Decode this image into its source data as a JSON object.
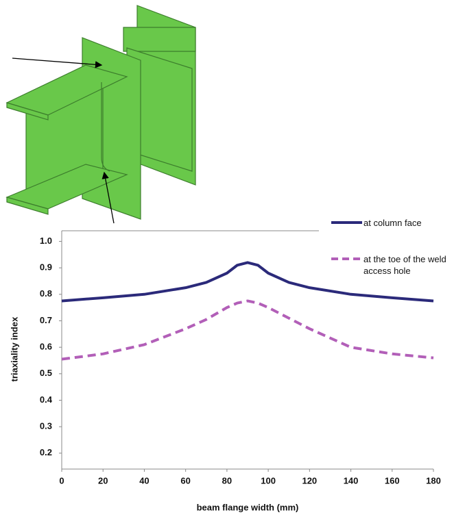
{
  "chart_data": {
    "type": "line",
    "x_label": "beam flange width (mm)",
    "y_label": "triaxiality index",
    "xlim": [
      0,
      180
    ],
    "xticks": [
      0,
      20,
      40,
      60,
      80,
      100,
      120,
      140,
      160,
      180
    ],
    "ylim": [
      0.14,
      1.04
    ],
    "yticks": [
      0.2,
      0.3,
      0.4,
      0.5,
      0.6,
      0.7,
      0.8,
      0.9,
      {
        "value": 1,
        "label": "1.0"
      }
    ],
    "x": [
      0,
      20,
      40,
      60,
      70,
      80,
      85,
      90,
      95,
      100,
      110,
      120,
      140,
      160,
      180
    ],
    "series": [
      {
        "name": "at column face",
        "color": "#2b2a7a",
        "dash": false,
        "values": [
          0.775,
          0.787,
          0.8,
          0.825,
          0.845,
          0.88,
          0.91,
          0.92,
          0.91,
          0.88,
          0.845,
          0.825,
          0.8,
          0.787,
          0.775
        ]
      },
      {
        "name": "at the toe of the weld access hole",
        "color": "#b25fb8",
        "dash": true,
        "values": [
          0.555,
          0.575,
          0.61,
          0.67,
          0.705,
          0.75,
          0.767,
          0.775,
          0.767,
          0.75,
          0.71,
          0.67,
          0.6,
          0.575,
          0.56
        ]
      }
    ],
    "legend": "top-right"
  }
}
